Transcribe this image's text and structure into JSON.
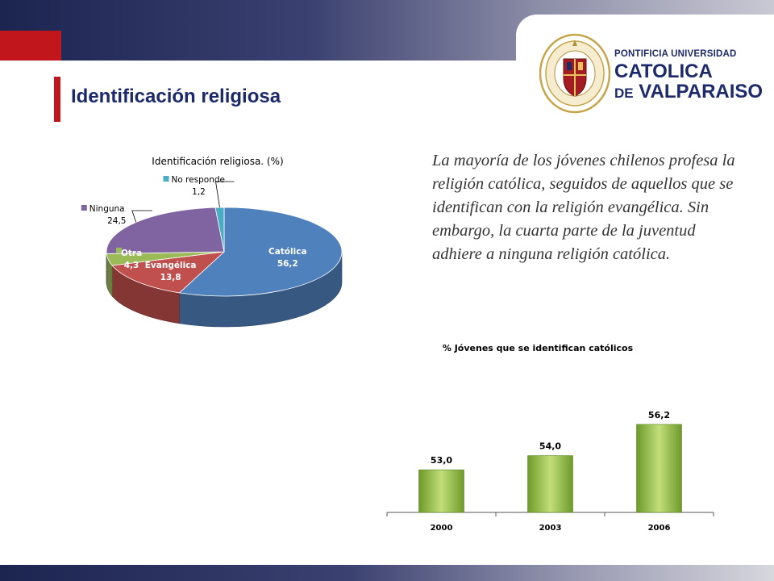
{
  "page": {
    "title": "Identificación religiosa",
    "paragraph": "La mayoría de los jóvenes chilenos profesa la religión católica, seguidos de aquellos que se identifican con la religión evangélica. Sin embargo, la cuarta parte de la juventud adhiere a ninguna religión católica."
  },
  "logo": {
    "line1": "PONTIFICIA UNIVERSIDAD",
    "line2": "CATOLICA",
    "line3_prefix": "DE",
    "line3_main": "VALPARAISO"
  },
  "colors": {
    "accent_red": "#c0161c",
    "title_navy": "#1c2a6b",
    "bar_green": "#8fbb3a"
  },
  "chart_data": [
    {
      "type": "pie",
      "title": "Identificación religiosa. (%)",
      "slices": [
        {
          "label": "Católica",
          "value": 56.2,
          "value_label": "56,2",
          "color": "#4f81bd"
        },
        {
          "label": "Evangélica",
          "value": 13.8,
          "value_label": "13,8",
          "color": "#c0504d"
        },
        {
          "label": "Otra",
          "value": 4.3,
          "value_label": "4,3",
          "color": "#9bbb59"
        },
        {
          "label": "Ninguna",
          "value": 24.5,
          "value_label": "24,5",
          "color": "#8064a2"
        },
        {
          "label": "No responde",
          "value": 1.2,
          "value_label": "1,2",
          "color": "#4bacc6"
        }
      ]
    },
    {
      "type": "bar",
      "title": "% Jóvenes que se identifican católicos",
      "categories": [
        "2000",
        "2003",
        "2006"
      ],
      "values": [
        53.0,
        54.0,
        56.2
      ],
      "value_labels": [
        "53,0",
        "54,0",
        "56,2"
      ],
      "ylim": [
        50,
        57.5
      ],
      "grid": false
    }
  ]
}
